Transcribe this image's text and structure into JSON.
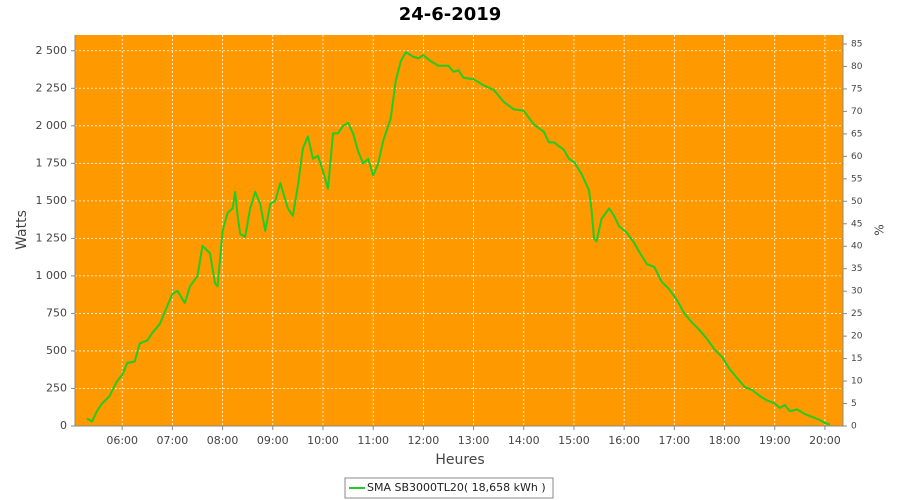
{
  "chart_data": {
    "type": "line",
    "title": "24-6-2019",
    "xlabel": "Heures",
    "ylabel": "Watts",
    "y2label": "%",
    "x": [
      5.3,
      5.4,
      5.5,
      5.6,
      5.75,
      5.9,
      6.0,
      6.1,
      6.25,
      6.35,
      6.5,
      6.6,
      6.75,
      6.9,
      7.0,
      7.1,
      7.25,
      7.35,
      7.5,
      7.6,
      7.75,
      7.85,
      7.9,
      8.0,
      8.1,
      8.2,
      8.25,
      8.3,
      8.35,
      8.45,
      8.55,
      8.65,
      8.75,
      8.85,
      8.95,
      9.05,
      9.15,
      9.3,
      9.4,
      9.5,
      9.6,
      9.7,
      9.8,
      9.9,
      10.0,
      10.1,
      10.2,
      10.3,
      10.4,
      10.5,
      10.6,
      10.7,
      10.8,
      10.9,
      11.0,
      11.1,
      11.2,
      11.35,
      11.45,
      11.55,
      11.65,
      11.8,
      11.9,
      12.0,
      12.15,
      12.3,
      12.5,
      12.6,
      12.7,
      12.8,
      13.0,
      13.2,
      13.4,
      13.6,
      13.8,
      14.0,
      14.2,
      14.4,
      14.5,
      14.6,
      14.8,
      14.9,
      15.0,
      15.15,
      15.3,
      15.35,
      15.4,
      15.45,
      15.55,
      15.7,
      15.8,
      15.9,
      16.05,
      16.2,
      16.3,
      16.45,
      16.6,
      16.75,
      16.9,
      17.05,
      17.2,
      17.35,
      17.5,
      17.65,
      17.8,
      17.95,
      18.1,
      18.25,
      18.4,
      18.55,
      18.7,
      18.85,
      19.0,
      19.1,
      19.2,
      19.3,
      19.45,
      19.6,
      19.75,
      19.9,
      20.0,
      20.1
    ],
    "series": [
      {
        "name": "SMA SB3000TL20( 18,658 kWh )",
        "color": "#22cc22",
        "values": [
          50,
          30,
          100,
          150,
          200,
          300,
          340,
          420,
          430,
          550,
          570,
          620,
          680,
          800,
          880,
          900,
          820,
          930,
          1000,
          1200,
          1150,
          950,
          930,
          1300,
          1420,
          1450,
          1560,
          1400,
          1280,
          1260,
          1450,
          1560,
          1480,
          1300,
          1480,
          1500,
          1620,
          1450,
          1400,
          1600,
          1850,
          1930,
          1780,
          1800,
          1700,
          1580,
          1950,
          1950,
          2000,
          2020,
          1950,
          1830,
          1750,
          1780,
          1670,
          1750,
          1900,
          2050,
          2300,
          2430,
          2490,
          2460,
          2450,
          2470,
          2430,
          2400,
          2400,
          2360,
          2370,
          2320,
          2310,
          2270,
          2240,
          2160,
          2110,
          2100,
          2010,
          1960,
          1890,
          1890,
          1840,
          1780,
          1760,
          1680,
          1570,
          1440,
          1250,
          1230,
          1380,
          1450,
          1400,
          1330,
          1290,
          1220,
          1160,
          1080,
          1060,
          960,
          910,
          840,
          750,
          690,
          640,
          580,
          510,
          460,
          380,
          320,
          260,
          240,
          200,
          170,
          150,
          120,
          140,
          100,
          110,
          80,
          60,
          40,
          20,
          10
        ]
      }
    ],
    "xlim": [
      5.06,
      20.36
    ],
    "xticks": [
      {
        "value": 6,
        "label": "06:00"
      },
      {
        "value": 7,
        "label": "07:00"
      },
      {
        "value": 8,
        "label": "08:00"
      },
      {
        "value": 9,
        "label": "09:00"
      },
      {
        "value": 10,
        "label": "10:00"
      },
      {
        "value": 11,
        "label": "11:00"
      },
      {
        "value": 12,
        "label": "12:00"
      },
      {
        "value": 13,
        "label": "13:00"
      },
      {
        "value": 14,
        "label": "14:00"
      },
      {
        "value": 15,
        "label": "15:00"
      },
      {
        "value": 16,
        "label": "16:00"
      },
      {
        "value": 17,
        "label": "17:00"
      },
      {
        "value": 18,
        "label": "18:00"
      },
      {
        "value": 19,
        "label": "19:00"
      },
      {
        "value": 20,
        "label": "20:00"
      }
    ],
    "ylim": [
      0,
      2605
    ],
    "yticks": [
      0,
      250,
      500,
      750,
      {
        "value": 1000,
        "label": "1 000"
      },
      {
        "value": 1250,
        "label": "1 250"
      },
      {
        "value": 1500,
        "label": "1 500"
      },
      {
        "value": 1750,
        "label": "1 750"
      },
      {
        "value": 2000,
        "label": "2 000"
      },
      {
        "value": 2250,
        "label": "2 250"
      },
      {
        "value": 2500,
        "label": "2 500"
      }
    ],
    "y2lim": [
      0,
      87
    ],
    "y2ticks": [
      0,
      5,
      10,
      15,
      20,
      25,
      30,
      35,
      40,
      45,
      50,
      55,
      60,
      65,
      70,
      75,
      80,
      85
    ],
    "grid": true,
    "legend": "bottom",
    "background": "#ff9900"
  }
}
